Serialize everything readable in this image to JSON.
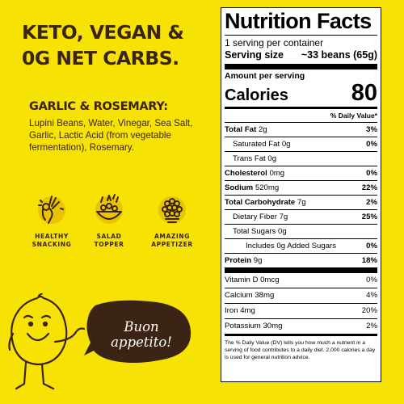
{
  "headline": [
    "KETO, VEGAN &",
    "0G NET CARBS."
  ],
  "flavor": {
    "title": "GARLIC & ROSEMARY:",
    "ingredients": "Lupini Beans, Water, Vinegar, Sea Salt, Garlic, Lactic Acid (from vegetable fermentation), Rosemary."
  },
  "icons": [
    {
      "icon": "ok-hand-icon",
      "label": "HEALTHY\nSNACKING"
    },
    {
      "icon": "salad-icon",
      "label": "SALAD\nTOPPER"
    },
    {
      "icon": "bowl-of-beans-icon",
      "label": "AMAZING\nAPPETIZER"
    }
  ],
  "bubble_text": [
    "Buon",
    "appetito!"
  ],
  "nutrition": {
    "title": "Nutrition Facts",
    "servings_per_container": "1 serving per container",
    "serving_size_label": "Serving size",
    "serving_size_value": "~33 beans (65g)",
    "amount_per_serving": "Amount per serving",
    "calories_label": "Calories",
    "calories_value": "80",
    "dv_header": "% Daily Value*",
    "rows": [
      {
        "label": "Total Fat",
        "value": "2g",
        "dv": "3%"
      },
      {
        "label": "Saturated Fat",
        "value": "0g",
        "dv": "0%"
      },
      {
        "label": "Trans Fat",
        "value": "0g",
        "dv": ""
      },
      {
        "label": "Cholesterol",
        "value": "0mg",
        "dv": "0%"
      },
      {
        "label": "Sodium",
        "value": "520mg",
        "dv": "22%"
      },
      {
        "label": "Total Carbohydrate",
        "value": "7g",
        "dv": "2%"
      },
      {
        "label": "Dietary Fiber",
        "value": "7g",
        "dv": "25%"
      },
      {
        "label": "Total Sugars",
        "value": "0g",
        "dv": ""
      },
      {
        "label": "Includes",
        "value": "0g Added Sugars",
        "dv": "0%"
      },
      {
        "label": "Protein",
        "value": "9g",
        "dv": "18%"
      }
    ],
    "vitamins": [
      {
        "label": "Vitamin D",
        "value": "0mcg",
        "dv": "0%"
      },
      {
        "label": "Calcium",
        "value": "38mg",
        "dv": "4%"
      },
      {
        "label": "Iron",
        "value": "4mg",
        "dv": "20%"
      },
      {
        "label": "Potassium",
        "value": "30mg",
        "dv": "2%"
      }
    ],
    "footnote": "The % Daily Value (DV) tells you how much a nutrient in a serving of food contributes to a daily diet. 2,000 calories a day is used for general nutrition advice."
  },
  "colors": {
    "background": "#f6e205",
    "brown": "#3b2414",
    "lemon": "#f6e205"
  }
}
